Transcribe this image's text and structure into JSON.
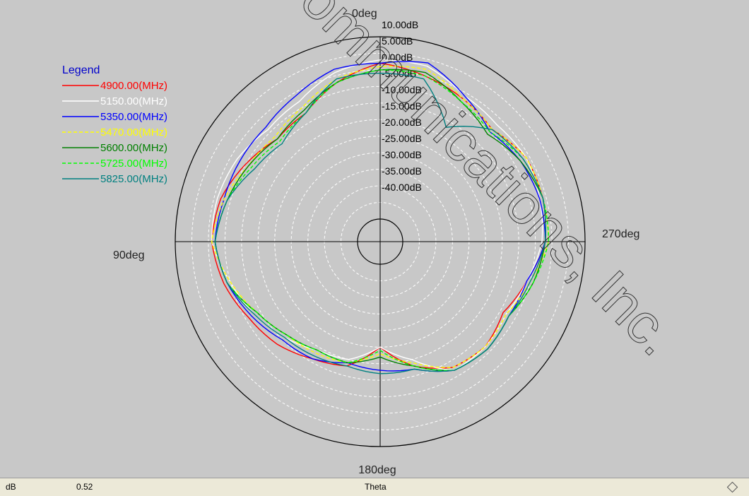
{
  "status_bar": {
    "label": "dB",
    "value": "0.52",
    "axis": "Theta"
  },
  "watermark": "Communications, Inc.",
  "chart_data": {
    "type": "polar-line",
    "angle_labels": [
      "0deg",
      "90deg",
      "180deg",
      "270deg"
    ],
    "radial_labels": [
      "10.00dB",
      "5.00dB",
      "0.00dB",
      "-5.00dB",
      "-10.00dB",
      "-15.00dB",
      "-20.00dB",
      "-25.00dB",
      "-30.00dB",
      "-35.00dB",
      "-40.00dB"
    ],
    "radial_ticks_db": [
      10,
      5,
      0,
      -5,
      -10,
      -15,
      -20,
      -25,
      -30,
      -35,
      -40
    ],
    "rlim": [
      -45,
      10
    ],
    "grid": true,
    "legend": {
      "title": "Legend",
      "position": "left"
    },
    "angles_deg": [
      0,
      15,
      30,
      45,
      60,
      75,
      90,
      105,
      120,
      135,
      150,
      165,
      180,
      195,
      210,
      225,
      240,
      255,
      270,
      285,
      300,
      315,
      330,
      345
    ],
    "series": [
      {
        "name": "4900.00(MHz)",
        "color": "#ff0000",
        "dash": false,
        "values": [
          2,
          -2,
          -7,
          -8,
          -5,
          -2,
          -1,
          -3,
          -6,
          -8,
          -11,
          -13,
          -20,
          -13,
          -8,
          -7,
          -9,
          -6,
          -2,
          -1,
          -1,
          -4,
          -2,
          0
        ]
      },
      {
        "name": "5150.00(MHz)",
        "color": "#ffffff",
        "dash": false,
        "values": [
          3,
          1,
          -3,
          -4,
          -2,
          -1,
          -1,
          -5,
          -8,
          -11,
          -14,
          -15,
          -20,
          -15,
          -7,
          -7,
          -8,
          -6,
          -3,
          -2,
          -1,
          -2,
          -1,
          3
        ]
      },
      {
        "name": "5350.00(MHz)",
        "color": "#0000ff",
        "dash": false,
        "values": [
          2,
          2,
          -1,
          -3,
          -3,
          -3,
          -2,
          -4,
          -7,
          -10,
          -11,
          -14,
          -13,
          -12,
          -7,
          -6,
          -7,
          -6,
          -2,
          -2,
          -3,
          -5,
          -1,
          4
        ]
      },
      {
        "name": "5470.00(MHz)",
        "color": "#ffff00",
        "dash": true,
        "values": [
          1,
          -1,
          -5,
          -7,
          -6,
          -3,
          -1,
          -5,
          -9,
          -12,
          -13,
          -14,
          -18,
          -14,
          -8,
          -7,
          -8,
          -5,
          -1,
          -1,
          -1,
          -4,
          -2,
          2
        ]
      },
      {
        "name": "5600.00(MHz)",
        "color": "#008000",
        "dash": false,
        "values": [
          0,
          -2,
          -6,
          -8,
          -6,
          -4,
          -2,
          -4,
          -9,
          -12,
          -14,
          -14,
          -17,
          -13,
          -7,
          -6,
          -7,
          -4,
          -2,
          -1,
          -3,
          -6,
          -3,
          1
        ]
      },
      {
        "name": "5725.00(MHz)",
        "color": "#00ff00",
        "dash": true,
        "values": [
          0,
          -2,
          -7,
          -9,
          -7,
          -4,
          -2,
          -4,
          -9,
          -12,
          -14,
          -14,
          -19,
          -13,
          -7,
          -6,
          -7,
          -4,
          -1,
          -1,
          -2,
          -5,
          -3,
          0
        ]
      },
      {
        "name": "5825.00(MHz)",
        "color": "#008080",
        "dash": false,
        "values": [
          -1,
          -1,
          -7,
          -10,
          -8,
          -4,
          -2,
          -4,
          -8,
          -11,
          -12,
          -13,
          -12,
          -12,
          -7,
          -6,
          -7,
          -5,
          -2,
          -1,
          -2,
          -4,
          -12,
          -1
        ]
      }
    ]
  }
}
